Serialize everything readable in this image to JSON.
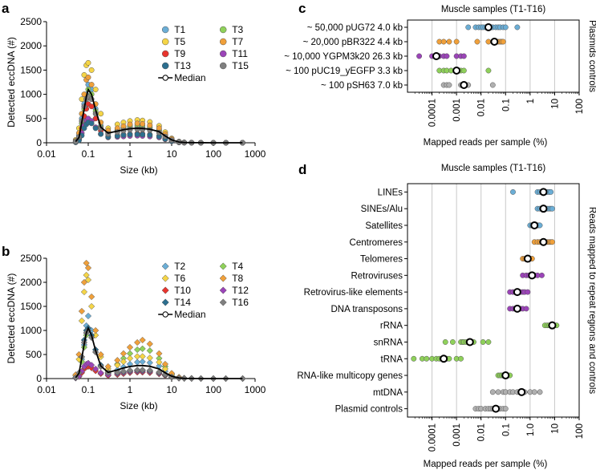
{
  "colors": {
    "T1": "#6baed6",
    "T2": "#6baed6",
    "T3": "#8fd15a",
    "T4": "#8fd15a",
    "T5": "#f5d547",
    "T6": "#f5d547",
    "T7": "#f0a03a",
    "T8": "#f0a03a",
    "T9": "#e8352e",
    "T10": "#e8352e",
    "T11": "#9b44b8",
    "T12": "#9b44b8",
    "T13": "#2c6f8f",
    "T14": "#2c6f8f",
    "T15": "#7f7f7f",
    "T16": "#7f7f7f",
    "median": "#000000",
    "light_grey": "#c8c8c8",
    "grid": "#c8c8c8"
  },
  "panels": {
    "a": {
      "letter": "a"
    },
    "b": {
      "letter": "b"
    },
    "c": {
      "letter": "c"
    },
    "d": {
      "letter": "d"
    }
  },
  "chart_data": [
    {
      "id": "a",
      "type": "scatter",
      "marker": "circle",
      "ylabel": "Detected eccDNA (#)",
      "xlabel": "Size (kb)",
      "xscale": "log",
      "xlim": [
        0.01,
        1000
      ],
      "xticks": [
        "0.01",
        "0.1",
        "1",
        "10",
        "100",
        "1000"
      ],
      "xtick_values": [
        0.01,
        0.1,
        1,
        10,
        100,
        1000
      ],
      "ylim": [
        0,
        2500
      ],
      "yticks": [
        "0",
        "500",
        "1000",
        "1500",
        "2000",
        "2500"
      ],
      "ytick_values": [
        0,
        500,
        1000,
        1500,
        2000,
        2500
      ],
      "legend": [
        "T1",
        "T3",
        "T5",
        "T7",
        "T9",
        "T11",
        "T13",
        "T15",
        "Median"
      ],
      "legend_position": "top-right",
      "size_kb": [
        0.05,
        0.06,
        0.07,
        0.08,
        0.09,
        0.1,
        0.12,
        0.15,
        0.2,
        0.3,
        0.5,
        0.7,
        1,
        1.5,
        2,
        3,
        5,
        7,
        10,
        15,
        20,
        30,
        50,
        100,
        200,
        500
      ],
      "series": [
        {
          "name": "T1",
          "values": [
            30,
            150,
            500,
            800,
            1000,
            1200,
            1100,
            700,
            350,
            200,
            260,
            300,
            320,
            330,
            320,
            300,
            250,
            150,
            60,
            15,
            5,
            2,
            1,
            0,
            0,
            0
          ]
        },
        {
          "name": "T3",
          "values": [
            20,
            100,
            400,
            700,
            900,
            1100,
            1000,
            650,
            320,
            220,
            280,
            320,
            350,
            360,
            350,
            320,
            260,
            160,
            70,
            20,
            5,
            2,
            1,
            0,
            0,
            0
          ]
        },
        {
          "name": "T5",
          "values": [
            60,
            300,
            900,
            1400,
            1600,
            1650,
            1500,
            1100,
            600,
            300,
            380,
            420,
            450,
            470,
            460,
            430,
            350,
            220,
            90,
            25,
            8,
            3,
            1,
            0,
            0,
            0
          ]
        },
        {
          "name": "T7",
          "values": [
            40,
            200,
            600,
            1000,
            1300,
            1350,
            1200,
            800,
            420,
            250,
            300,
            340,
            380,
            400,
            390,
            360,
            300,
            180,
            80,
            20,
            6,
            2,
            1,
            0,
            0,
            0
          ]
        },
        {
          "name": "T9",
          "values": [
            20,
            80,
            300,
            550,
            700,
            800,
            750,
            500,
            250,
            130,
            150,
            170,
            180,
            190,
            185,
            170,
            140,
            90,
            40,
            10,
            3,
            1,
            0,
            0,
            0,
            0
          ]
        },
        {
          "name": "T11",
          "values": [
            10,
            60,
            200,
            350,
            450,
            500,
            450,
            320,
            180,
            110,
            120,
            130,
            140,
            145,
            140,
            130,
            110,
            70,
            30,
            8,
            2,
            1,
            0,
            0,
            0,
            0
          ]
        },
        {
          "name": "T13",
          "values": [
            10,
            50,
            150,
            300,
            380,
            420,
            400,
            300,
            180,
            120,
            140,
            160,
            170,
            175,
            170,
            160,
            130,
            80,
            35,
            10,
            3,
            1,
            0,
            0,
            0,
            0
          ]
        },
        {
          "name": "T15",
          "values": [
            25,
            120,
            450,
            750,
            900,
            950,
            900,
            600,
            300,
            180,
            220,
            250,
            270,
            280,
            275,
            260,
            210,
            130,
            55,
            15,
            4,
            1,
            0,
            0,
            0,
            0
          ]
        }
      ],
      "median": [
        25,
        110,
        420,
        700,
        950,
        1100,
        1000,
        680,
        320,
        200,
        240,
        270,
        290,
        300,
        295,
        280,
        230,
        140,
        60,
        15,
        5,
        2,
        1,
        0,
        0,
        0
      ]
    },
    {
      "id": "b",
      "type": "scatter",
      "marker": "diamond",
      "ylabel": "Detected eccDNA (#)",
      "xlabel": "Size (kb)",
      "xscale": "log",
      "xlim": [
        0.01,
        1000
      ],
      "xticks": [
        "0.01",
        "0.1",
        "1",
        "10",
        "100",
        "1000"
      ],
      "xtick_values": [
        0.01,
        0.1,
        1,
        10,
        100,
        1000
      ],
      "ylim": [
        0,
        2500
      ],
      "yticks": [
        "0",
        "500",
        "1000",
        "1500",
        "2000",
        "2500"
      ],
      "ytick_values": [
        0,
        500,
        1000,
        1500,
        2000,
        2500
      ],
      "legend": [
        "T2",
        "T4",
        "T6",
        "T8",
        "T10",
        "T12",
        "T14",
        "T16",
        "Median"
      ],
      "legend_position": "top-right",
      "size_kb": [
        0.05,
        0.06,
        0.07,
        0.08,
        0.09,
        0.1,
        0.12,
        0.15,
        0.2,
        0.3,
        0.5,
        0.7,
        1,
        1.5,
        2,
        3,
        5,
        7,
        10,
        15,
        20,
        30,
        50,
        100,
        200,
        500
      ],
      "series": [
        {
          "name": "T2",
          "values": [
            20,
            100,
            400,
            700,
            1100,
            1300,
            1000,
            600,
            250,
            100,
            180,
            240,
            300,
            340,
            350,
            330,
            260,
            150,
            60,
            15,
            5,
            2,
            1,
            0,
            0,
            0
          ]
        },
        {
          "name": "T4",
          "values": [
            20,
            90,
            350,
            650,
            900,
            1000,
            900,
            550,
            250,
            150,
            300,
            420,
            520,
            600,
            620,
            580,
            420,
            250,
            90,
            25,
            8,
            3,
            1,
            0,
            0,
            0
          ]
        },
        {
          "name": "T6",
          "values": [
            60,
            400,
            1200,
            1800,
            2150,
            2050,
            1500,
            900,
            450,
            200,
            280,
            350,
            420,
            460,
            460,
            430,
            340,
            200,
            80,
            20,
            6,
            2,
            1,
            0,
            0,
            0
          ]
        },
        {
          "name": "T8",
          "values": [
            80,
            500,
            1400,
            2000,
            2400,
            2300,
            1700,
            1000,
            500,
            250,
            380,
            520,
            650,
            750,
            800,
            720,
            520,
            300,
            110,
            30,
            10,
            3,
            1,
            0,
            0,
            0
          ]
        },
        {
          "name": "T10",
          "values": [
            10,
            40,
            120,
            200,
            240,
            250,
            220,
            160,
            100,
            60,
            80,
            100,
            120,
            130,
            130,
            120,
            95,
            60,
            25,
            6,
            2,
            1,
            0,
            0,
            0,
            0
          ]
        },
        {
          "name": "T12",
          "values": [
            10,
            50,
            150,
            250,
            300,
            320,
            280,
            200,
            120,
            80,
            100,
            120,
            140,
            150,
            150,
            140,
            110,
            70,
            30,
            8,
            2,
            1,
            0,
            0,
            0,
            0
          ]
        },
        {
          "name": "T14",
          "values": [
            20,
            120,
            450,
            800,
            1000,
            1050,
            900,
            600,
            280,
            120,
            120,
            140,
            160,
            170,
            170,
            160,
            125,
            80,
            35,
            10,
            3,
            1,
            0,
            0,
            0,
            0
          ]
        },
        {
          "name": "T16",
          "values": [
            25,
            120,
            450,
            750,
            950,
            1000,
            850,
            550,
            250,
            120,
            130,
            150,
            170,
            180,
            180,
            170,
            135,
            85,
            35,
            10,
            3,
            1,
            0,
            0,
            0,
            0
          ]
        }
      ],
      "median": [
        20,
        110,
        420,
        720,
        950,
        1050,
        900,
        580,
        260,
        130,
        180,
        220,
        250,
        270,
        270,
        255,
        200,
        120,
        50,
        12,
        4,
        1,
        0,
        0,
        0,
        0
      ]
    },
    {
      "id": "c",
      "type": "dot",
      "title": "Muscle samples (T1-T16)",
      "xlabel": "Mapped reads per sample (%)",
      "ylabel": "Plasmids controls",
      "xscale": "log",
      "xlim": [
        1e-05,
        100
      ],
      "xticks": [
        "0.0001",
        "0.001",
        "0.01",
        "0.1",
        "1",
        "10",
        "100"
      ],
      "xtick_values": [
        0.0001,
        0.001,
        0.01,
        0.1,
        1,
        10,
        100
      ],
      "categories": [
        "~ 50,000 pUG72 4.0 kb",
        "~ 20,000 pBR322 4.4 kb",
        "~ 10,000 YGPM3k20 26.3 kb",
        "~ 100 pUC19_yEGFP 3.3 kb",
        "~ 100 pSH63 7.0 kb"
      ],
      "category_colors": [
        "#6baed6",
        "#f0a03a",
        "#9b44b8",
        "#8fd15a",
        "#b0b0b0"
      ],
      "values": [
        [
          0.003,
          0.006,
          0.008,
          0.01,
          0.012,
          0.015,
          0.02,
          0.025,
          0.03,
          0.04,
          0.05,
          0.06,
          0.08,
          0.1,
          0.3
        ],
        [
          0.0002,
          0.0003,
          0.0005,
          0.001,
          0.007,
          0.02,
          0.03,
          0.04,
          0.05,
          0.06,
          0.07,
          0.08
        ],
        [
          3e-05,
          0.0001,
          0.00015,
          0.0002,
          0.0003,
          0.0004,
          0.001,
          0.0015,
          0.002
        ],
        [
          0.0002,
          0.0003,
          0.0004,
          0.0006,
          0.001,
          0.0012,
          0.0015,
          0.002,
          0.02
        ],
        [
          0.0003,
          0.0004,
          0.0005,
          0.0015,
          0.0018,
          0.002,
          0.003,
          0.03
        ]
      ],
      "medians": [
        0.02,
        0.035,
        0.00015,
        0.001,
        0.002
      ]
    },
    {
      "id": "d",
      "type": "dot",
      "title": "Muscle samples (T1-T16)",
      "xlabel": "Mapped reads per sample (%)",
      "ylabel": "Reads mapped to repeat regions and controls",
      "xscale": "log",
      "xlim": [
        1e-05,
        100
      ],
      "xticks": [
        "0.0001",
        "0.001",
        "0.01",
        "0.1",
        "1.0",
        "10",
        "100"
      ],
      "xtick_values": [
        0.0001,
        0.001,
        0.01,
        0.1,
        1,
        10,
        100
      ],
      "categories": [
        "LINEs",
        "SINEs/Alu",
        "Satellites",
        "Centromeres",
        "Telomeres",
        "Retroviruses",
        "Retrovirus-like elements",
        "DNA transposons",
        "rRNA",
        "snRNA",
        "tRNA",
        "RNA-like multicopy genes",
        "mtDNA",
        "Plasmid controls"
      ],
      "category_colors": [
        "#6baed6",
        "#6baed6",
        "#6baed6",
        "#f0a03a",
        "#f0a03a",
        "#9b44b8",
        "#9b44b8",
        "#9b44b8",
        "#8fd15a",
        "#8fd15a",
        "#8fd15a",
        "#8fd15a",
        "#b0b0b0",
        "#b0b0b0"
      ],
      "values": [
        [
          0.2,
          2,
          2.5,
          3,
          3.5,
          4,
          4.5,
          5,
          6,
          7
        ],
        [
          2,
          2.5,
          3,
          3.5,
          4,
          5,
          6,
          7,
          8
        ],
        [
          1,
          1.2,
          1.4,
          1.6,
          1.8,
          2,
          2.2,
          2.5
        ],
        [
          1.5,
          2,
          2.5,
          3,
          3.5,
          4,
          5,
          6,
          7,
          8
        ],
        [
          0.5,
          0.6,
          0.7,
          0.8,
          0.9,
          1,
          1.2
        ],
        [
          0.5,
          0.7,
          0.9,
          1.1,
          1.3,
          1.5,
          2,
          3
        ],
        [
          0.15,
          0.2,
          0.25,
          0.3,
          0.35,
          0.4,
          0.5,
          0.6,
          0.8
        ],
        [
          0.15,
          0.2,
          0.25,
          0.3,
          0.35,
          0.4,
          0.5,
          0.7
        ],
        [
          4,
          5,
          6,
          7,
          8,
          9,
          10,
          12
        ],
        [
          0.00035,
          0.0007,
          0.0015,
          0.0018,
          0.002,
          0.0025,
          0.003,
          0.0035,
          0.004,
          0.005,
          0.012,
          0.02
        ],
        [
          1.8e-05,
          4e-05,
          6e-05,
          0.0001,
          0.00015,
          0.0002,
          0.00025,
          0.0003,
          0.0004,
          0.0005,
          0.001,
          0.0015
        ],
        [
          0.05,
          0.06,
          0.07,
          0.08,
          0.09,
          0.1,
          0.12,
          0.15
        ],
        [
          0.03,
          0.05,
          0.08,
          0.1,
          0.15,
          0.2,
          0.3,
          0.4,
          0.6,
          1,
          1.5,
          2.5
        ],
        [
          0.006,
          0.008,
          0.01,
          0.015,
          0.02,
          0.025,
          0.03,
          0.04,
          0.05,
          0.06,
          0.08,
          0.1
        ]
      ],
      "medians": [
        3.5,
        3.5,
        1.5,
        3.5,
        0.8,
        1.2,
        0.3,
        0.3,
        8,
        0.0035,
        0.0003,
        0.1,
        0.45,
        0.04
      ]
    }
  ]
}
